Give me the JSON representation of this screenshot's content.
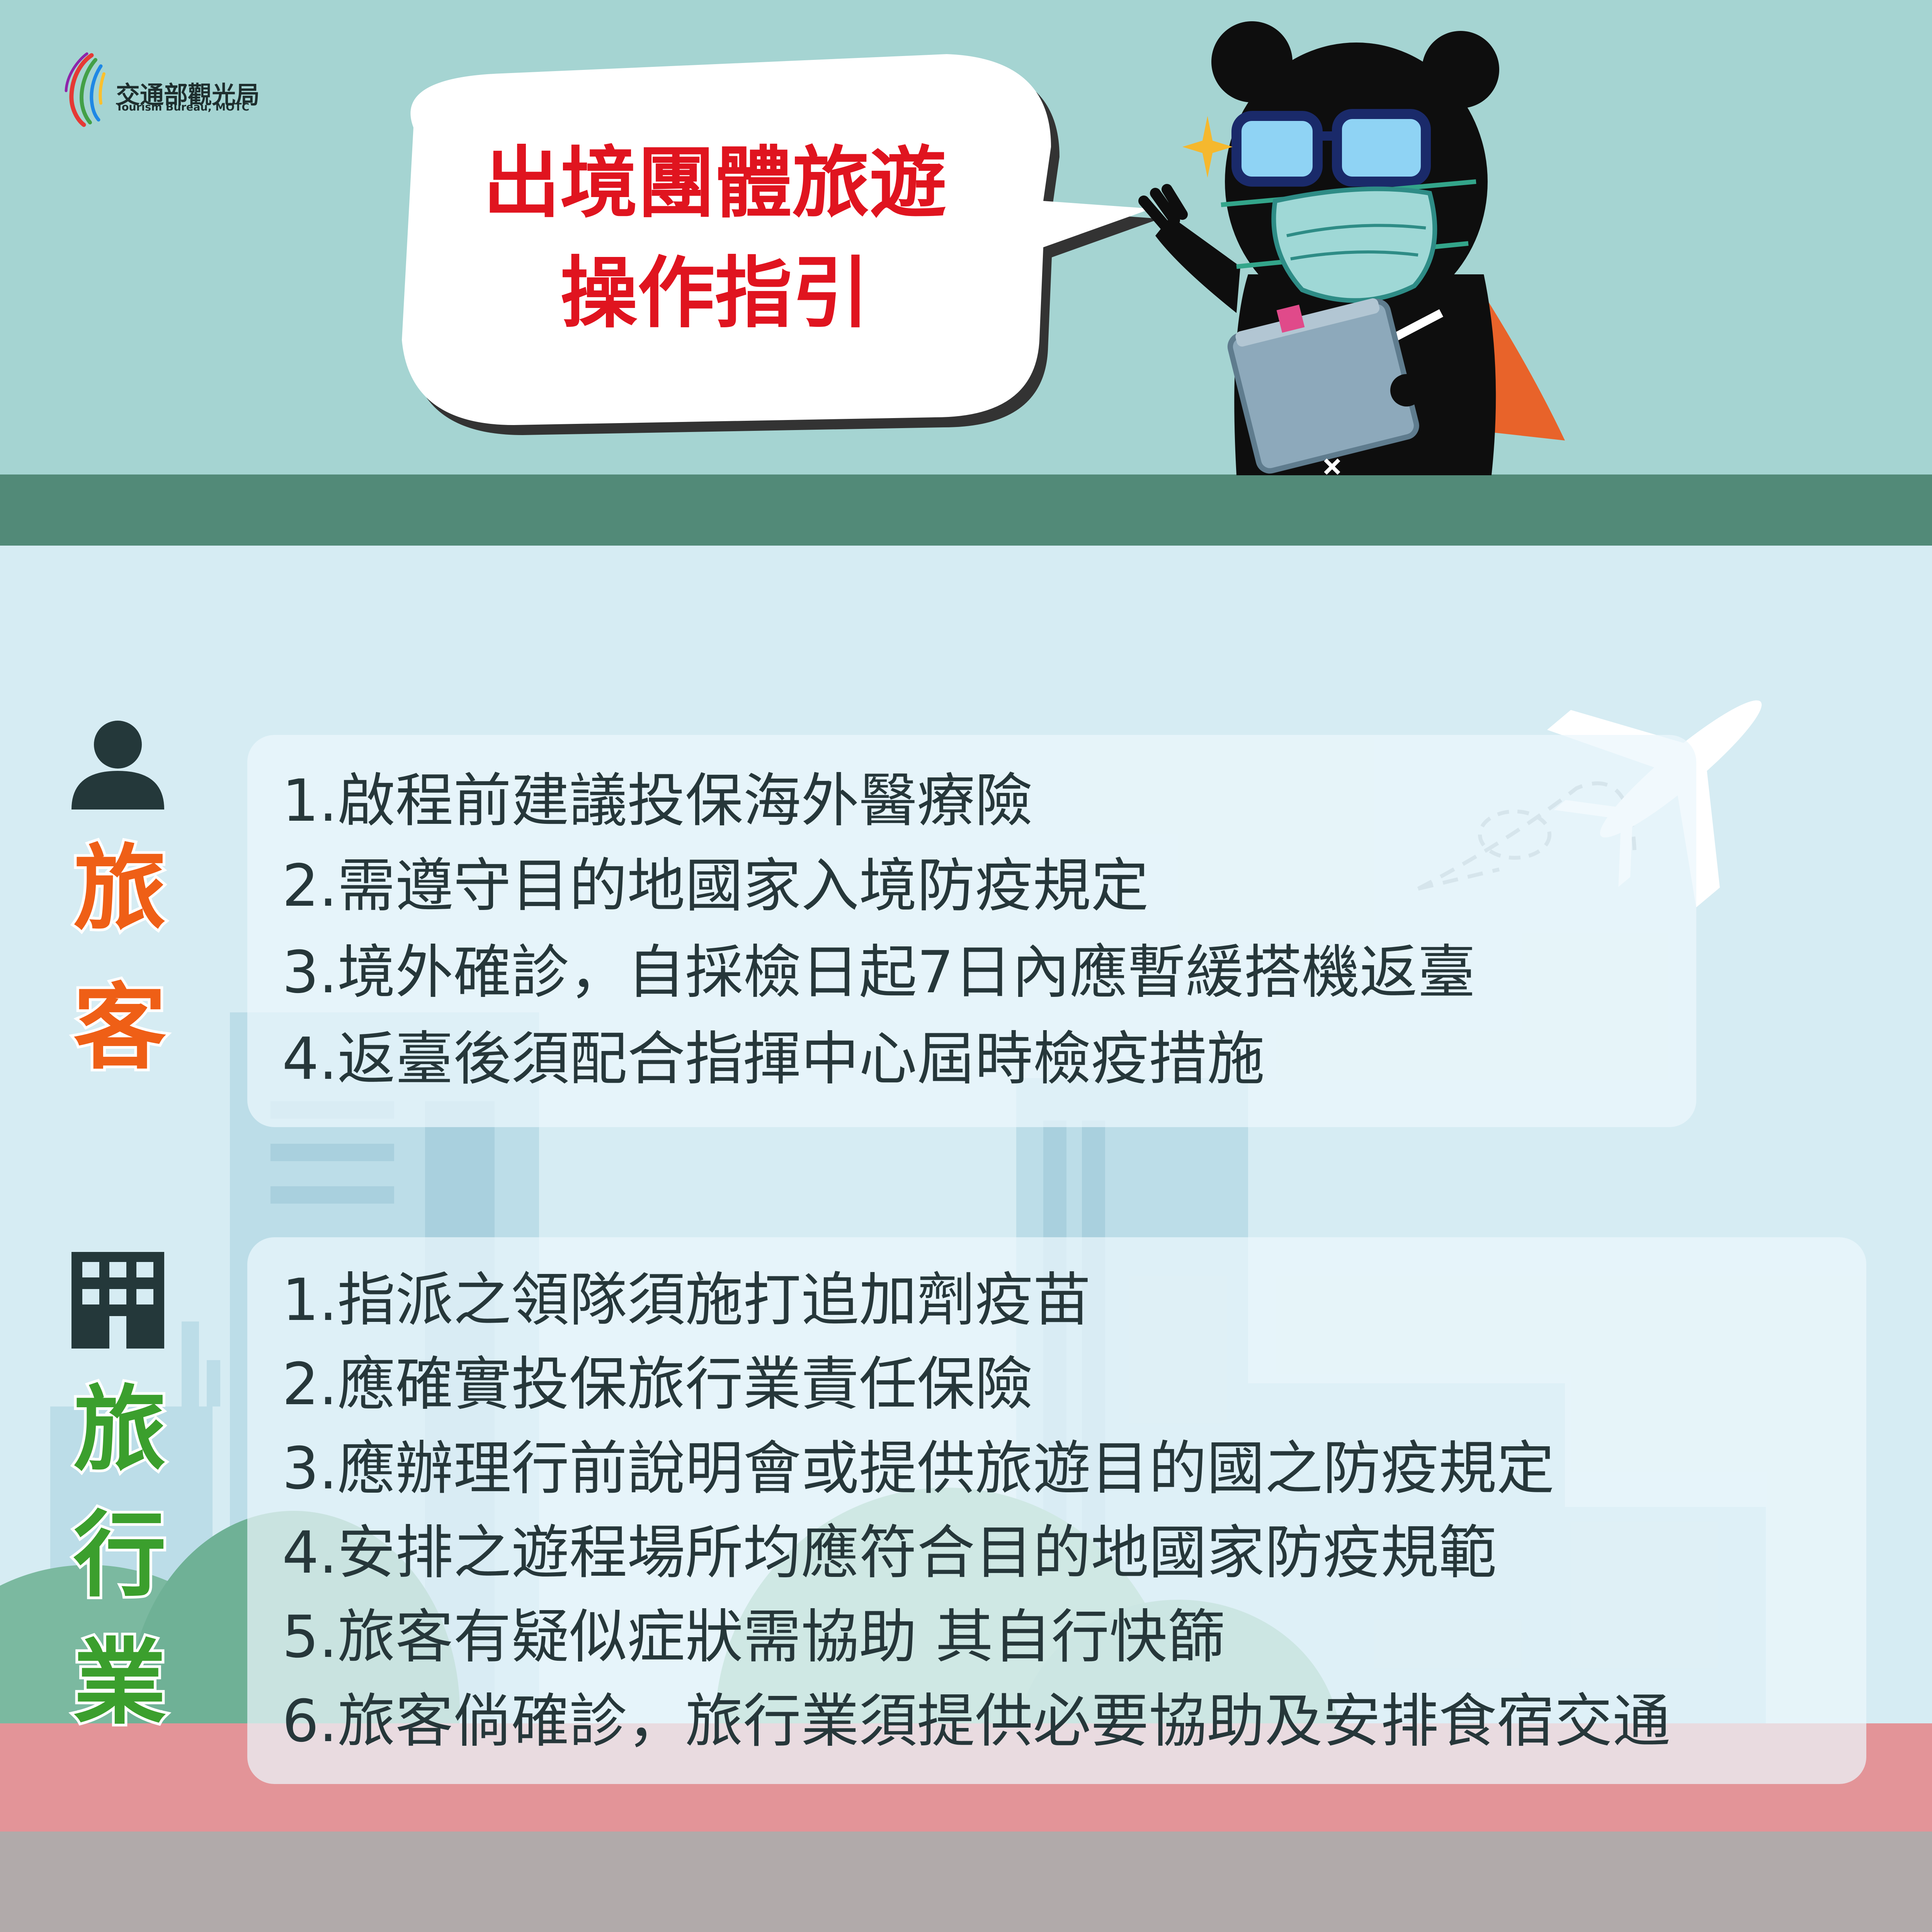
{
  "logo": {
    "name_zh": "交通部觀光局",
    "name_en": "Tourism Bureau, MOTC"
  },
  "title": {
    "line1": "出境團體旅遊",
    "line2": "操作指引"
  },
  "sections": {
    "traveler": {
      "label_chars": [
        "旅",
        "客"
      ],
      "items": [
        "1.啟程前建議投保海外醫療險",
        "2.需遵守目的地國家入境防疫規定",
        "3.境外確診，自採檢日起7日內應暫緩搭機返臺",
        "4.返臺後須配合指揮中心屆時檢疫措施"
      ]
    },
    "agency": {
      "label_chars": [
        "旅",
        "行",
        "業"
      ],
      "items": [
        "1.指派之領隊須施打追加劑疫苗",
        "2.應確實投保旅行業責任保險",
        "3.應辦理行前說明會或提供旅遊目的國之防疫規定",
        "4.安排之遊程場所均應符合目的地國家防疫規範",
        "5.旅客有疑似症狀需協助 其自行快篩",
        "6.旅客倘確診，旅行業須提供必要協助及安排食宿交通"
      ]
    }
  },
  "colors": {
    "top_bg": "#a5d4d2",
    "band": "#528a78",
    "title_red": "#e0141f",
    "traveler_orange": "#ef5f16",
    "agency_green": "#3b9f2d",
    "text_dark": "#26373a",
    "ground_pink": "#e39498",
    "ground_gray": "#b1aaaa"
  },
  "icons": [
    "person-icon",
    "building-icon",
    "airplane-icon",
    "taiwan-logo-icon",
    "bear-mascot-icon",
    "sparkle-icon"
  ]
}
